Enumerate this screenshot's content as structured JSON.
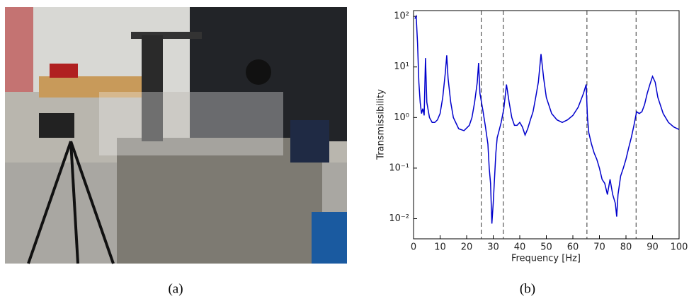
{
  "captions": [
    "(a)",
    "(b)"
  ],
  "chart_data": {
    "type": "line",
    "xlabel": "Frequency [Hz]",
    "ylabel": "Transmissibility",
    "log_y": true,
    "xlim": [
      0,
      100
    ],
    "xticks": [
      0,
      10,
      20,
      30,
      40,
      50,
      60,
      70,
      80,
      90,
      100
    ],
    "ylim": [
      0.004,
      130
    ],
    "yticks": [
      {
        "value": 0.01,
        "label": "10⁻²"
      },
      {
        "value": 0.1,
        "label": "10⁻¹"
      },
      {
        "value": 1,
        "label": "10⁰"
      },
      {
        "value": 10,
        "label": "10¹"
      },
      {
        "value": 100,
        "label": "10²"
      }
    ],
    "vlines": [
      25.5,
      33.8,
      65.3,
      83.8
    ],
    "series": [
      {
        "color": "#0000cc",
        "x": [
          0.5,
          1,
          1.5,
          2,
          2.5,
          3,
          3.5,
          4,
          4.5,
          5,
          6,
          7,
          8,
          9,
          10,
          11,
          12,
          12.5,
          13,
          14,
          15,
          17,
          19,
          21,
          22,
          23,
          24,
          24.5,
          25,
          26,
          27,
          28,
          28.5,
          29,
          29.5,
          30,
          31,
          31.5,
          32,
          33,
          34,
          35,
          36,
          37,
          38,
          39,
          40,
          41,
          42,
          43,
          44,
          45,
          46,
          47,
          48,
          49,
          50,
          52,
          54,
          56,
          58,
          60,
          62,
          64,
          65,
          65.5,
          66,
          67,
          68,
          69,
          70,
          71,
          72,
          73,
          74,
          75,
          76,
          76.5,
          77,
          78,
          79,
          80,
          81,
          82,
          83,
          84,
          85,
          86,
          87,
          88,
          89,
          90,
          91,
          92,
          94,
          96,
          98,
          100
        ],
        "values": [
          90,
          100,
          30,
          5,
          2,
          1.2,
          1.5,
          1.1,
          15,
          2,
          1,
          0.8,
          0.8,
          0.9,
          1.2,
          2.5,
          8,
          17,
          6,
          2,
          1,
          0.6,
          0.55,
          0.7,
          1,
          2,
          5,
          12,
          3,
          1.5,
          0.7,
          0.3,
          0.1,
          0.05,
          0.008,
          0.02,
          0.2,
          0.4,
          0.5,
          0.8,
          1.5,
          4.5,
          2,
          1,
          0.7,
          0.7,
          0.8,
          0.65,
          0.45,
          0.6,
          0.9,
          1.3,
          2.5,
          5,
          18,
          6,
          2.5,
          1.2,
          0.9,
          0.8,
          0.9,
          1.1,
          1.6,
          3,
          4.5,
          1,
          0.5,
          0.3,
          0.2,
          0.15,
          0.1,
          0.06,
          0.05,
          0.03,
          0.06,
          0.03,
          0.02,
          0.011,
          0.03,
          0.07,
          0.1,
          0.15,
          0.25,
          0.4,
          0.7,
          1.3,
          1.2,
          1.3,
          1.8,
          3,
          4.5,
          6.5,
          5,
          2.5,
          1.2,
          0.8,
          0.65,
          0.58
        ]
      }
    ]
  }
}
